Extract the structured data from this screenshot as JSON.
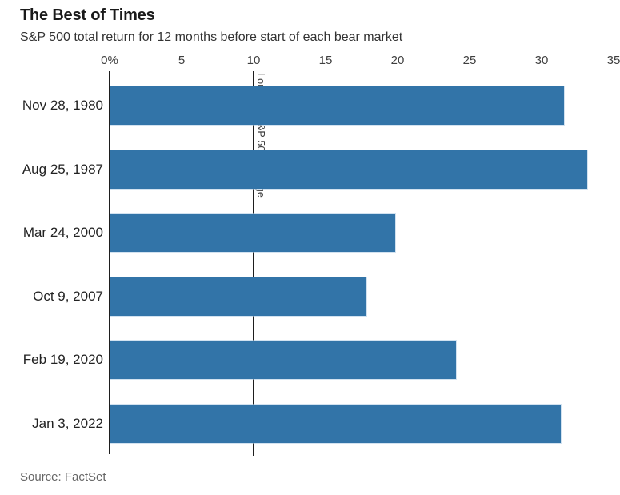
{
  "chart_data": {
    "type": "bar",
    "orientation": "horizontal",
    "title": "The Best of Times",
    "subtitle": "S&P 500 total return for 12 months before start of each bear market",
    "categories": [
      "Nov 28, 1980",
      "Aug 25, 1987",
      "Mar 24, 2000",
      "Oct 9, 2007",
      "Feb 19, 2020",
      "Jan 3, 2022"
    ],
    "values": [
      31.5,
      33.1,
      19.8,
      17.8,
      24.0,
      31.3
    ],
    "value_unit": "%",
    "xlim": [
      0,
      35
    ],
    "x_ticks": [
      0,
      5,
      10,
      15,
      20,
      25,
      30,
      35
    ],
    "x_tick_labels": [
      "0%",
      "5",
      "10",
      "15",
      "20",
      "25",
      "30",
      "35"
    ],
    "grid": true,
    "legend": false,
    "annotation": {
      "text": "Long-run S&P 500 average",
      "x": 10
    },
    "bar_color": "#3274a8",
    "gridline_color": "#e7e7e7",
    "axis_line_color": "#1e1e1e"
  },
  "footer": {
    "source": "Source: FactSet"
  }
}
